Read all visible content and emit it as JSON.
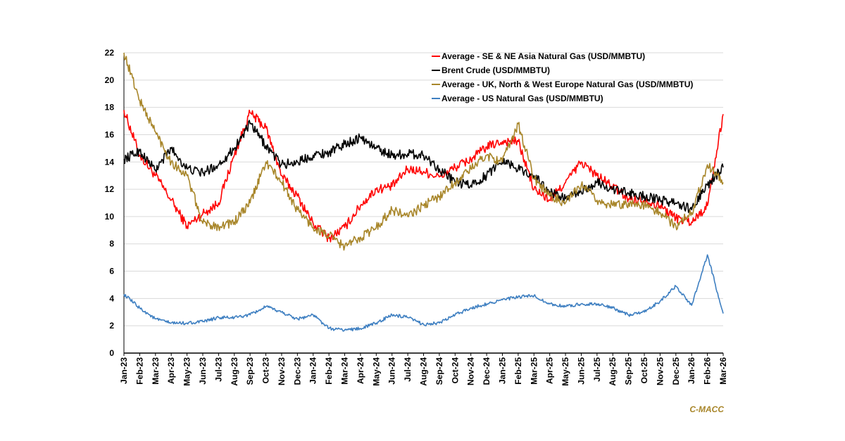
{
  "chart_data": {
    "type": "line",
    "title": "",
    "xlabel": "",
    "ylabel": "",
    "ylim": [
      0,
      22
    ],
    "yticks": [
      0,
      2,
      4,
      6,
      8,
      10,
      12,
      14,
      16,
      18,
      20,
      22
    ],
    "grid": true,
    "legend_position": "top-right",
    "x_labels": [
      "Jan-23",
      "Feb-23",
      "Mar-23",
      "Apr-23",
      "May-23",
      "Jun-23",
      "Jul-23",
      "Aug-23",
      "Sep-23",
      "Oct-23",
      "Nov-23",
      "Dec-23",
      "Jan-24",
      "Feb-24",
      "Mar-24",
      "Apr-24",
      "May-24",
      "Jun-24",
      "Jul-24",
      "Aug-24",
      "Sep-24",
      "Oct-24",
      "Nov-24",
      "Dec-24",
      "Jan-25",
      "Feb-25",
      "Mar-25",
      "Apr-25",
      "May-25",
      "Jun-25",
      "Jul-25",
      "Aug-25",
      "Sep-25",
      "Oct-25",
      "Nov-25",
      "Dec-25",
      "Jan-26",
      "Feb-26",
      "Mar-26"
    ],
    "series": [
      {
        "name": "Average - SE & NE Asia Natural Gas (USD/MMBTU)",
        "color": "#FF0000",
        "values": [
          17.8,
          14.5,
          13.0,
          11.2,
          9.3,
          10.2,
          11.0,
          14.5,
          17.6,
          16.5,
          13.0,
          11.5,
          9.5,
          8.4,
          9.2,
          10.8,
          12.0,
          12.2,
          13.5,
          13.3,
          12.9,
          13.6,
          14.2,
          15.1,
          15.5,
          15.5,
          12.0,
          11.2,
          12.5,
          14.0,
          13.0,
          12.2,
          11.3,
          11.2,
          10.8,
          9.9,
          9.6,
          10.8,
          17.5
        ]
      },
      {
        "name": "Brent Crude (USD/MMBTU)",
        "color": "#000000",
        "values": [
          14.2,
          14.8,
          13.4,
          15.0,
          13.5,
          13.2,
          13.8,
          15.0,
          16.8,
          15.2,
          13.8,
          14.0,
          14.5,
          14.7,
          15.3,
          15.8,
          15.0,
          14.5,
          14.6,
          14.5,
          13.5,
          12.5,
          12.3,
          13.0,
          14.2,
          13.5,
          13.0,
          11.8,
          11.3,
          11.8,
          12.5,
          12.0,
          11.7,
          11.5,
          11.2,
          11.0,
          10.5,
          12.3,
          13.6
        ]
      },
      {
        "name": "Average - UK, North & West Europe Natural Gas (USD/MMBTU)",
        "color": "#A8862A",
        "values": [
          22.0,
          18.5,
          16.2,
          14.0,
          13.0,
          9.5,
          9.3,
          9.6,
          11.0,
          14.0,
          12.5,
          10.5,
          9.2,
          8.6,
          7.8,
          8.5,
          9.2,
          10.5,
          10.0,
          10.8,
          11.5,
          12.5,
          13.5,
          14.5,
          14.0,
          16.8,
          12.8,
          11.5,
          11.0,
          12.3,
          11.2,
          10.8,
          11.0,
          10.8,
          10.3,
          9.3,
          10.3,
          13.8,
          12.5
        ]
      },
      {
        "name": "Average - US Natural Gas (USD/MMBTU)",
        "color": "#3E7FC1",
        "values": [
          4.3,
          3.3,
          2.5,
          2.2,
          2.2,
          2.3,
          2.6,
          2.6,
          2.8,
          3.4,
          3.0,
          2.5,
          2.8,
          1.8,
          1.7,
          1.8,
          2.2,
          2.8,
          2.6,
          2.1,
          2.2,
          2.8,
          3.3,
          3.6,
          3.9,
          4.1,
          4.2,
          3.6,
          3.4,
          3.6,
          3.6,
          3.3,
          2.8,
          3.0,
          3.8,
          4.9,
          3.5,
          7.2,
          2.9
        ]
      }
    ]
  },
  "brand": {
    "label": "C-MACC"
  }
}
